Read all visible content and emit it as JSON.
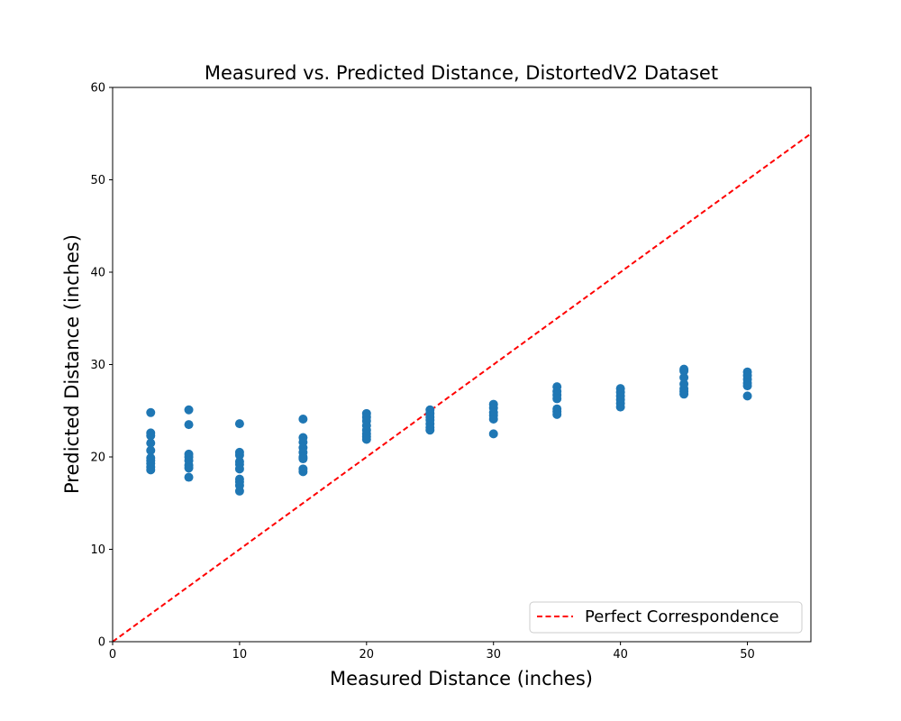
{
  "chart_data": {
    "type": "scatter",
    "title": "Measured vs. Predicted Distance, DistortedV2 Dataset",
    "xlabel": "Measured Distance (inches)",
    "ylabel": "Predicted Distance (inches)",
    "xlim": [
      0,
      55
    ],
    "ylim": [
      0,
      60
    ],
    "xticks": [
      "0",
      "10",
      "20",
      "30",
      "40",
      "50"
    ],
    "yticks": [
      "0",
      "10",
      "20",
      "30",
      "40",
      "50",
      "60"
    ],
    "grid": false,
    "legend": {
      "position": "lower-right",
      "entries": [
        "Perfect Correspondence"
      ]
    },
    "colors": {
      "points": "#1f77b4",
      "reference_line": "#ff0000"
    },
    "reference_line": {
      "name": "Perfect Correspondence",
      "style": "dashed",
      "x": [
        0,
        55
      ],
      "y": [
        0,
        55
      ]
    },
    "points": [
      [
        3,
        24.8
      ],
      [
        3,
        22.6
      ],
      [
        3,
        22.3
      ],
      [
        3,
        21.5
      ],
      [
        3,
        20.7
      ],
      [
        3,
        19.9
      ],
      [
        3,
        19.6
      ],
      [
        3,
        19.3
      ],
      [
        3,
        18.9
      ],
      [
        3,
        18.6
      ],
      [
        6,
        25.1
      ],
      [
        6,
        23.5
      ],
      [
        6,
        20.3
      ],
      [
        6,
        20.0
      ],
      [
        6,
        19.6
      ],
      [
        6,
        19.1
      ],
      [
        6,
        18.8
      ],
      [
        6,
        17.8
      ],
      [
        10,
        23.6
      ],
      [
        10,
        20.5
      ],
      [
        10,
        20.2
      ],
      [
        10,
        19.5
      ],
      [
        10,
        19.2
      ],
      [
        10,
        18.7
      ],
      [
        10,
        17.6
      ],
      [
        10,
        17.3
      ],
      [
        10,
        16.9
      ],
      [
        10,
        16.3
      ],
      [
        15,
        24.1
      ],
      [
        15,
        22.1
      ],
      [
        15,
        21.6
      ],
      [
        15,
        21.0
      ],
      [
        15,
        20.5
      ],
      [
        15,
        20.0
      ],
      [
        15,
        19.8
      ],
      [
        15,
        18.7
      ],
      [
        15,
        18.4
      ],
      [
        20,
        24.7
      ],
      [
        20,
        24.3
      ],
      [
        20,
        23.9
      ],
      [
        20,
        23.4
      ],
      [
        20,
        22.9
      ],
      [
        20,
        22.5
      ],
      [
        20,
        22.2
      ],
      [
        20,
        21.9
      ],
      [
        25,
        25.1
      ],
      [
        25,
        24.7
      ],
      [
        25,
        24.3
      ],
      [
        25,
        24.0
      ],
      [
        25,
        23.6
      ],
      [
        25,
        23.2
      ],
      [
        25,
        22.9
      ],
      [
        30,
        25.7
      ],
      [
        30,
        25.3
      ],
      [
        30,
        24.8
      ],
      [
        30,
        24.5
      ],
      [
        30,
        24.1
      ],
      [
        30,
        22.5
      ],
      [
        35,
        27.6
      ],
      [
        35,
        27.1
      ],
      [
        35,
        26.7
      ],
      [
        35,
        26.3
      ],
      [
        35,
        25.2
      ],
      [
        35,
        24.9
      ],
      [
        35,
        24.6
      ],
      [
        40,
        27.4
      ],
      [
        40,
        27.0
      ],
      [
        40,
        26.6
      ],
      [
        40,
        26.2
      ],
      [
        40,
        25.8
      ],
      [
        40,
        25.4
      ],
      [
        45,
        29.5
      ],
      [
        45,
        29.3
      ],
      [
        45,
        28.6
      ],
      [
        45,
        27.9
      ],
      [
        45,
        27.4
      ],
      [
        45,
        27.1
      ],
      [
        45,
        26.8
      ],
      [
        50,
        29.2
      ],
      [
        50,
        28.8
      ],
      [
        50,
        28.4
      ],
      [
        50,
        28.0
      ],
      [
        50,
        27.7
      ],
      [
        50,
        26.6
      ]
    ]
  }
}
